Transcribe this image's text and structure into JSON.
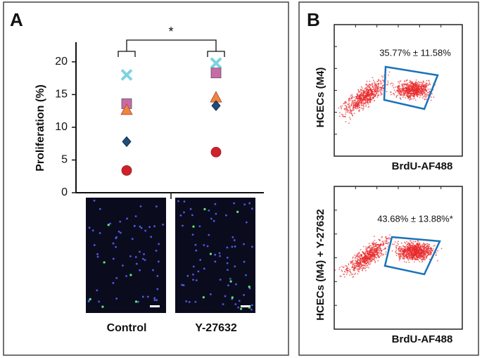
{
  "panel_labels": [
    "A",
    "B"
  ],
  "chart_data": [
    {
      "type": "dotplot",
      "ylabel": "Proliferation (%)",
      "categories": [
        "Control",
        "Y-27632"
      ],
      "annotation": "*",
      "ylim": [
        0,
        23
      ],
      "yticks": [
        0,
        5,
        10,
        15,
        20
      ],
      "series": [
        {
          "marker": "x",
          "color": "#7fd3e0",
          "values": [
            18,
            19.8
          ]
        },
        {
          "marker": "square",
          "color": "#c86aa8",
          "values": [
            13.6,
            18.3
          ]
        },
        {
          "marker": "triangle",
          "color": "#f0843c",
          "values": [
            12.7,
            14.6
          ]
        },
        {
          "marker": "diamond",
          "color": "#1d4f7a",
          "values": [
            7.8,
            13.3
          ]
        },
        {
          "marker": "circle",
          "color": "#d0202a",
          "values": [
            3.4,
            6.2
          ]
        }
      ]
    }
  ],
  "flow_plots": [
    {
      "ylabel": "HCECs (M4)",
      "xlabel": "BrdU-AF488",
      "annotation": "35.77% ± 11.58%"
    },
    {
      "ylabel": "HCECs (M4) + Y-27632",
      "xlabel": "BrdU-AF488",
      "annotation": "43.68% ± 13.88%*"
    }
  ]
}
